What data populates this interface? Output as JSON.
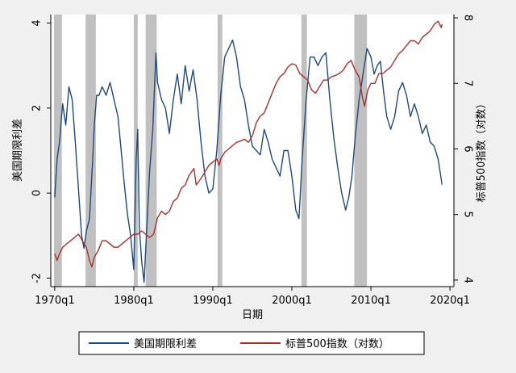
{
  "chart_data": {
    "type": "line",
    "xlabel": "日期",
    "ylabel_left": "美国期限利差",
    "ylabel_right": "标普500指数（对数）",
    "x_ticks": [
      "1970q1",
      "1980q1",
      "1990q1",
      "2000q1",
      "2010q1",
      "2020q1"
    ],
    "x_tick_years": [
      1970,
      1980,
      1990,
      2000,
      2010,
      2020
    ],
    "xlim": [
      1969.5,
      2020.5
    ],
    "ylim_left": [
      -2.2,
      4.2
    ],
    "ylim_right": [
      3.9,
      8.05
    ],
    "y_ticks_left": [
      "-2",
      "0",
      "2",
      "4"
    ],
    "y_ticks_right": [
      "4",
      "5",
      "6",
      "7",
      "8"
    ],
    "legend_position": "bottom",
    "grid": false,
    "colors": {
      "spread": "#1f497d",
      "sp500": "#a8302a",
      "recession": "#c0c0c0",
      "background": "#f0f0f0"
    },
    "recessions": [
      [
        1969.9,
        1970.9
      ],
      [
        1973.9,
        1975.2
      ],
      [
        1980.0,
        1980.5
      ],
      [
        1981.5,
        1982.9
      ],
      [
        1990.6,
        1991.2
      ],
      [
        2001.2,
        2001.9
      ],
      [
        2007.9,
        2009.5
      ]
    ],
    "series": [
      {
        "name": "美国期限利差",
        "axis": "left",
        "points": [
          [
            1970.0,
            -0.1
          ],
          [
            1970.3,
            0.8
          ],
          [
            1970.6,
            1.2
          ],
          [
            1971.0,
            2.1
          ],
          [
            1971.4,
            1.6
          ],
          [
            1971.8,
            2.5
          ],
          [
            1972.2,
            2.2
          ],
          [
            1972.6,
            1.2
          ],
          [
            1973.0,
            0.1
          ],
          [
            1973.4,
            -1.0
          ],
          [
            1973.7,
            -1.3
          ],
          [
            1974.0,
            -0.9
          ],
          [
            1974.4,
            -0.6
          ],
          [
            1974.8,
            0.8
          ],
          [
            1975.0,
            1.6
          ],
          [
            1975.3,
            2.3
          ],
          [
            1975.6,
            2.3
          ],
          [
            1976.0,
            2.5
          ],
          [
            1976.5,
            2.3
          ],
          [
            1977.0,
            2.6
          ],
          [
            1977.5,
            2.2
          ],
          [
            1978.0,
            1.8
          ],
          [
            1978.4,
            1.0
          ],
          [
            1978.8,
            0.2
          ],
          [
            1979.2,
            -0.5
          ],
          [
            1979.6,
            -1.0
          ],
          [
            1980.0,
            -1.8
          ],
          [
            1980.3,
            0.8
          ],
          [
            1980.5,
            1.5
          ],
          [
            1980.7,
            -0.8
          ],
          [
            1981.0,
            -1.6
          ],
          [
            1981.3,
            -2.1
          ],
          [
            1981.6,
            -1.0
          ],
          [
            1982.0,
            0.5
          ],
          [
            1982.4,
            1.5
          ],
          [
            1982.8,
            3.3
          ],
          [
            1983.0,
            2.6
          ],
          [
            1983.5,
            2.2
          ],
          [
            1984.0,
            2.0
          ],
          [
            1984.5,
            1.4
          ],
          [
            1985.0,
            2.2
          ],
          [
            1985.5,
            2.8
          ],
          [
            1986.0,
            2.1
          ],
          [
            1986.5,
            3.0
          ],
          [
            1987.0,
            2.4
          ],
          [
            1987.5,
            2.9
          ],
          [
            1988.0,
            2.2
          ],
          [
            1988.5,
            1.2
          ],
          [
            1989.0,
            0.4
          ],
          [
            1989.5,
            0.0
          ],
          [
            1990.0,
            0.1
          ],
          [
            1990.5,
            1.0
          ],
          [
            1991.0,
            2.3
          ],
          [
            1991.5,
            3.2
          ],
          [
            1992.0,
            3.4
          ],
          [
            1992.5,
            3.6
          ],
          [
            1993.0,
            3.2
          ],
          [
            1993.5,
            2.5
          ],
          [
            1994.0,
            2.2
          ],
          [
            1994.5,
            1.6
          ],
          [
            1995.0,
            1.1
          ],
          [
            1995.5,
            1.0
          ],
          [
            1996.0,
            0.9
          ],
          [
            1996.5,
            1.5
          ],
          [
            1997.0,
            1.2
          ],
          [
            1997.5,
            0.8
          ],
          [
            1998.0,
            0.6
          ],
          [
            1998.5,
            0.4
          ],
          [
            1999.0,
            1.0
          ],
          [
            1999.5,
            1.0
          ],
          [
            2000.0,
            0.4
          ],
          [
            2000.5,
            -0.4
          ],
          [
            2000.9,
            -0.6
          ],
          [
            2001.3,
            0.8
          ],
          [
            2001.8,
            2.2
          ],
          [
            2002.3,
            3.2
          ],
          [
            2002.8,
            3.2
          ],
          [
            2003.3,
            3.0
          ],
          [
            2003.8,
            3.2
          ],
          [
            2004.3,
            3.3
          ],
          [
            2004.8,
            2.2
          ],
          [
            2005.3,
            1.3
          ],
          [
            2005.8,
            0.6
          ],
          [
            2006.3,
            0.0
          ],
          [
            2006.8,
            -0.4
          ],
          [
            2007.2,
            -0.1
          ],
          [
            2007.6,
            0.4
          ],
          [
            2008.0,
            1.3
          ],
          [
            2008.5,
            2.2
          ],
          [
            2009.0,
            2.8
          ],
          [
            2009.5,
            3.4
          ],
          [
            2010.0,
            3.2
          ],
          [
            2010.4,
            2.8
          ],
          [
            2010.8,
            3.0
          ],
          [
            2011.2,
            3.1
          ],
          [
            2011.6,
            2.4
          ],
          [
            2012.0,
            1.8
          ],
          [
            2012.5,
            1.5
          ],
          [
            2013.0,
            1.8
          ],
          [
            2013.5,
            2.4
          ],
          [
            2014.0,
            2.6
          ],
          [
            2014.5,
            2.3
          ],
          [
            2015.0,
            1.8
          ],
          [
            2015.5,
            2.1
          ],
          [
            2016.0,
            1.8
          ],
          [
            2016.5,
            1.4
          ],
          [
            2017.0,
            1.6
          ],
          [
            2017.5,
            1.2
          ],
          [
            2018.0,
            1.1
          ],
          [
            2018.5,
            0.8
          ],
          [
            2019.0,
            0.2
          ]
        ]
      },
      {
        "name": "标普500指数（对数）",
        "axis": "right",
        "points": [
          [
            1970.0,
            4.4
          ],
          [
            1970.3,
            4.3
          ],
          [
            1970.6,
            4.4
          ],
          [
            1971.0,
            4.5
          ],
          [
            1971.5,
            4.55
          ],
          [
            1972.0,
            4.6
          ],
          [
            1972.5,
            4.65
          ],
          [
            1973.0,
            4.7
          ],
          [
            1973.5,
            4.6
          ],
          [
            1974.0,
            4.5
          ],
          [
            1974.4,
            4.3
          ],
          [
            1974.7,
            4.2
          ],
          [
            1975.0,
            4.35
          ],
          [
            1975.5,
            4.45
          ],
          [
            1976.0,
            4.6
          ],
          [
            1976.5,
            4.6
          ],
          [
            1977.0,
            4.55
          ],
          [
            1977.5,
            4.5
          ],
          [
            1978.0,
            4.5
          ],
          [
            1978.5,
            4.55
          ],
          [
            1979.0,
            4.6
          ],
          [
            1979.5,
            4.65
          ],
          [
            1980.0,
            4.7
          ],
          [
            1980.5,
            4.7
          ],
          [
            1981.0,
            4.75
          ],
          [
            1981.5,
            4.7
          ],
          [
            1982.0,
            4.65
          ],
          [
            1982.5,
            4.7
          ],
          [
            1983.0,
            4.95
          ],
          [
            1983.5,
            5.05
          ],
          [
            1984.0,
            5.0
          ],
          [
            1984.5,
            5.05
          ],
          [
            1985.0,
            5.2
          ],
          [
            1985.5,
            5.25
          ],
          [
            1986.0,
            5.4
          ],
          [
            1986.5,
            5.45
          ],
          [
            1987.0,
            5.6
          ],
          [
            1987.6,
            5.7
          ],
          [
            1987.9,
            5.45
          ],
          [
            1988.5,
            5.55
          ],
          [
            1989.0,
            5.65
          ],
          [
            1989.5,
            5.75
          ],
          [
            1990.0,
            5.8
          ],
          [
            1990.5,
            5.85
          ],
          [
            1990.8,
            5.75
          ],
          [
            1991.0,
            5.85
          ],
          [
            1991.5,
            5.95
          ],
          [
            1992.0,
            6.0
          ],
          [
            1992.5,
            6.05
          ],
          [
            1993.0,
            6.1
          ],
          [
            1993.5,
            6.12
          ],
          [
            1994.0,
            6.15
          ],
          [
            1994.5,
            6.1
          ],
          [
            1995.0,
            6.2
          ],
          [
            1995.5,
            6.4
          ],
          [
            1996.0,
            6.5
          ],
          [
            1996.5,
            6.55
          ],
          [
            1997.0,
            6.7
          ],
          [
            1997.5,
            6.85
          ],
          [
            1998.0,
            7.0
          ],
          [
            1998.5,
            7.1
          ],
          [
            1999.0,
            7.15
          ],
          [
            1999.5,
            7.25
          ],
          [
            2000.0,
            7.3
          ],
          [
            2000.5,
            7.28
          ],
          [
            2001.0,
            7.15
          ],
          [
            2001.5,
            7.1
          ],
          [
            2002.0,
            7.05
          ],
          [
            2002.5,
            6.9
          ],
          [
            2003.0,
            6.85
          ],
          [
            2003.5,
            6.95
          ],
          [
            2004.0,
            7.05
          ],
          [
            2004.5,
            7.05
          ],
          [
            2005.0,
            7.1
          ],
          [
            2005.5,
            7.12
          ],
          [
            2006.0,
            7.15
          ],
          [
            2006.5,
            7.2
          ],
          [
            2007.0,
            7.3
          ],
          [
            2007.5,
            7.35
          ],
          [
            2008.0,
            7.2
          ],
          [
            2008.5,
            7.1
          ],
          [
            2008.9,
            6.8
          ],
          [
            2009.2,
            6.65
          ],
          [
            2009.6,
            6.9
          ],
          [
            2010.0,
            7.0
          ],
          [
            2010.5,
            7.0
          ],
          [
            2011.0,
            7.15
          ],
          [
            2011.5,
            7.15
          ],
          [
            2012.0,
            7.2
          ],
          [
            2012.5,
            7.25
          ],
          [
            2013.0,
            7.35
          ],
          [
            2013.5,
            7.45
          ],
          [
            2014.0,
            7.5
          ],
          [
            2014.5,
            7.58
          ],
          [
            2015.0,
            7.65
          ],
          [
            2015.5,
            7.65
          ],
          [
            2016.0,
            7.6
          ],
          [
            2016.5,
            7.7
          ],
          [
            2017.0,
            7.75
          ],
          [
            2017.5,
            7.8
          ],
          [
            2018.0,
            7.9
          ],
          [
            2018.5,
            7.95
          ],
          [
            2018.9,
            7.85
          ],
          [
            2019.0,
            7.9
          ]
        ]
      }
    ]
  }
}
